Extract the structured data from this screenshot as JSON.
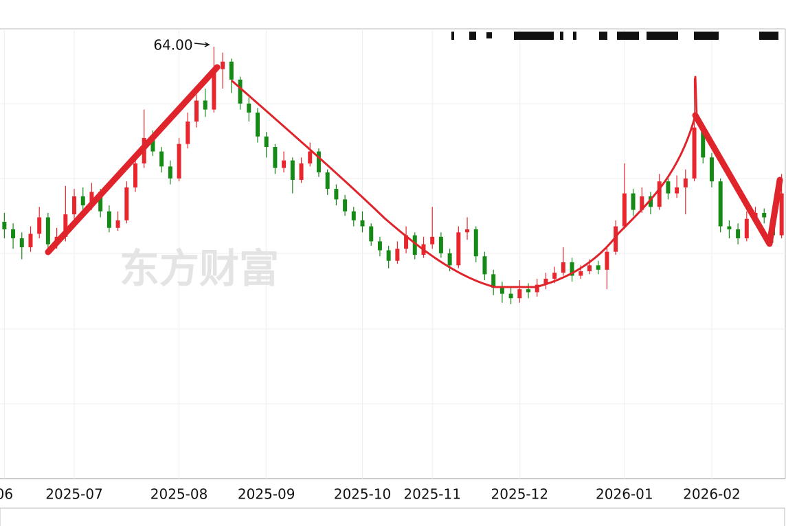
{
  "chart_data": {
    "type": "candlestick",
    "watermark": "东方财富",
    "annotation": "64.00",
    "up_color": "#e8262d",
    "down_color": "#168a16",
    "ylim": [
      35.15,
      65.19
    ],
    "categories": [
      "06",
      null,
      null,
      null,
      null,
      null,
      null,
      null,
      "2025-07",
      null,
      null,
      null,
      null,
      null,
      null,
      null,
      null,
      null,
      null,
      null,
      "2025-08",
      null,
      null,
      null,
      null,
      null,
      null,
      null,
      null,
      null,
      "2025-09",
      null,
      null,
      null,
      null,
      null,
      null,
      null,
      null,
      null,
      null,
      "2025-10",
      null,
      null,
      null,
      null,
      null,
      null,
      null,
      "2025-11",
      null,
      null,
      null,
      null,
      null,
      null,
      null,
      null,
      null,
      "2025-12",
      null,
      null,
      null,
      null,
      null,
      null,
      null,
      null,
      null,
      null,
      null,
      "2026-01",
      null,
      null,
      null,
      null,
      null,
      null,
      null,
      null,
      null,
      "2026-02",
      null,
      null,
      null,
      null,
      null,
      null,
      null,
      null
    ],
    "ohlc": [
      [
        52.3,
        52.9,
        51.2,
        51.8
      ],
      [
        51.8,
        52.2,
        50.5,
        51.2
      ],
      [
        51.2,
        51.6,
        49.8,
        50.6
      ],
      [
        50.6,
        52.0,
        50.3,
        51.5
      ],
      [
        51.5,
        53.3,
        51.2,
        52.6
      ],
      [
        52.6,
        52.9,
        50.4,
        50.8
      ],
      [
        50.8,
        51.9,
        50.5,
        51.3
      ],
      [
        51.3,
        54.7,
        51.0,
        52.8
      ],
      [
        52.8,
        54.5,
        52.5,
        54.0
      ],
      [
        54.0,
        54.6,
        53.0,
        53.4
      ],
      [
        53.4,
        54.9,
        53.1,
        54.3
      ],
      [
        54.3,
        54.5,
        52.6,
        53.0
      ],
      [
        53.0,
        53.4,
        51.6,
        51.9
      ],
      [
        51.9,
        53.0,
        51.7,
        52.4
      ],
      [
        52.4,
        55.0,
        52.2,
        54.6
      ],
      [
        54.6,
        56.9,
        54.3,
        56.2
      ],
      [
        56.2,
        59.8,
        55.9,
        57.9
      ],
      [
        57.9,
        58.4,
        56.7,
        57.0
      ],
      [
        57.0,
        57.3,
        55.6,
        56.0
      ],
      [
        56.0,
        56.4,
        54.8,
        55.2
      ],
      [
        55.2,
        57.9,
        55.0,
        57.5
      ],
      [
        57.5,
        59.6,
        57.2,
        59.0
      ],
      [
        59.0,
        60.8,
        58.6,
        60.4
      ],
      [
        60.4,
        61.2,
        59.3,
        59.8
      ],
      [
        59.8,
        64.0,
        59.6,
        62.5
      ],
      [
        62.5,
        63.6,
        61.2,
        63.0
      ],
      [
        63.0,
        63.2,
        60.9,
        61.8
      ],
      [
        61.8,
        62.0,
        59.8,
        60.2
      ],
      [
        60.2,
        60.6,
        59.0,
        59.6
      ],
      [
        59.6,
        59.9,
        57.6,
        58.0
      ],
      [
        58.0,
        58.3,
        56.6,
        57.3
      ],
      [
        57.3,
        57.5,
        55.5,
        55.9
      ],
      [
        55.9,
        57.0,
        55.6,
        56.4
      ],
      [
        56.4,
        56.6,
        54.2,
        55.1
      ],
      [
        55.1,
        56.6,
        54.9,
        56.2
      ],
      [
        56.2,
        57.6,
        56.0,
        57.0
      ],
      [
        57.0,
        57.2,
        55.3,
        55.6
      ],
      [
        55.6,
        55.8,
        54.1,
        54.5
      ],
      [
        54.5,
        54.8,
        53.4,
        53.8
      ],
      [
        53.8,
        54.1,
        52.7,
        53.0
      ],
      [
        53.0,
        53.3,
        52.0,
        52.4
      ],
      [
        52.4,
        53.0,
        51.6,
        52.0
      ],
      [
        52.0,
        52.2,
        50.7,
        51.0
      ],
      [
        51.0,
        51.3,
        50.0,
        50.4
      ],
      [
        50.4,
        50.7,
        49.2,
        49.7
      ],
      [
        49.7,
        51.0,
        49.5,
        50.5
      ],
      [
        50.5,
        52.0,
        50.2,
        51.4
      ],
      [
        51.4,
        51.6,
        49.8,
        50.1
      ],
      [
        50.1,
        51.3,
        49.9,
        50.8
      ],
      [
        50.8,
        53.3,
        50.5,
        51.3
      ],
      [
        51.3,
        51.6,
        49.9,
        50.2
      ],
      [
        50.2,
        50.5,
        49.0,
        49.4
      ],
      [
        49.4,
        52.0,
        49.2,
        51.6
      ],
      [
        51.6,
        52.6,
        51.1,
        51.8
      ],
      [
        51.8,
        52.0,
        49.6,
        50.0
      ],
      [
        50.0,
        50.3,
        48.4,
        48.8
      ],
      [
        48.8,
        49.1,
        47.4,
        47.9
      ],
      [
        47.9,
        48.3,
        46.9,
        47.5
      ],
      [
        47.5,
        47.9,
        46.8,
        47.2
      ],
      [
        47.2,
        48.4,
        46.9,
        47.8
      ],
      [
        47.8,
        48.2,
        47.2,
        47.6
      ],
      [
        47.6,
        48.5,
        47.3,
        48.1
      ],
      [
        48.1,
        48.9,
        47.8,
        48.5
      ],
      [
        48.5,
        49.3,
        48.2,
        48.9
      ],
      [
        48.9,
        50.6,
        48.7,
        49.6
      ],
      [
        49.6,
        49.9,
        48.3,
        48.7
      ],
      [
        48.7,
        49.4,
        48.5,
        49.0
      ],
      [
        49.0,
        49.8,
        48.8,
        49.4
      ],
      [
        49.4,
        49.7,
        48.8,
        49.1
      ],
      [
        49.1,
        50.7,
        47.8,
        50.3
      ],
      [
        50.3,
        52.4,
        50.1,
        52.0
      ],
      [
        52.0,
        56.2,
        51.8,
        54.2
      ],
      [
        54.2,
        54.5,
        52.7,
        53.1
      ],
      [
        53.1,
        54.6,
        52.9,
        54.0
      ],
      [
        54.0,
        54.3,
        52.8,
        53.3
      ],
      [
        53.3,
        55.5,
        53.1,
        55.0
      ],
      [
        55.0,
        55.3,
        53.8,
        54.2
      ],
      [
        54.2,
        55.4,
        53.9,
        54.6
      ],
      [
        54.6,
        55.8,
        52.8,
        55.2
      ],
      [
        55.2,
        61.9,
        55.0,
        58.6
      ],
      [
        58.6,
        58.9,
        56.2,
        56.6
      ],
      [
        56.6,
        56.9,
        54.6,
        55.0
      ],
      [
        55.0,
        55.2,
        51.6,
        52.0
      ],
      [
        52.0,
        52.4,
        51.2,
        51.8
      ],
      [
        51.8,
        52.2,
        50.8,
        51.2
      ],
      [
        51.2,
        53.0,
        51.0,
        52.5
      ],
      [
        52.5,
        53.3,
        52.2,
        52.9
      ],
      [
        52.9,
        53.2,
        52.2,
        52.6
      ],
      [
        52.6,
        52.8,
        50.9,
        51.4
      ],
      [
        51.4,
        55.5,
        51.2,
        54.2
      ]
    ]
  }
}
